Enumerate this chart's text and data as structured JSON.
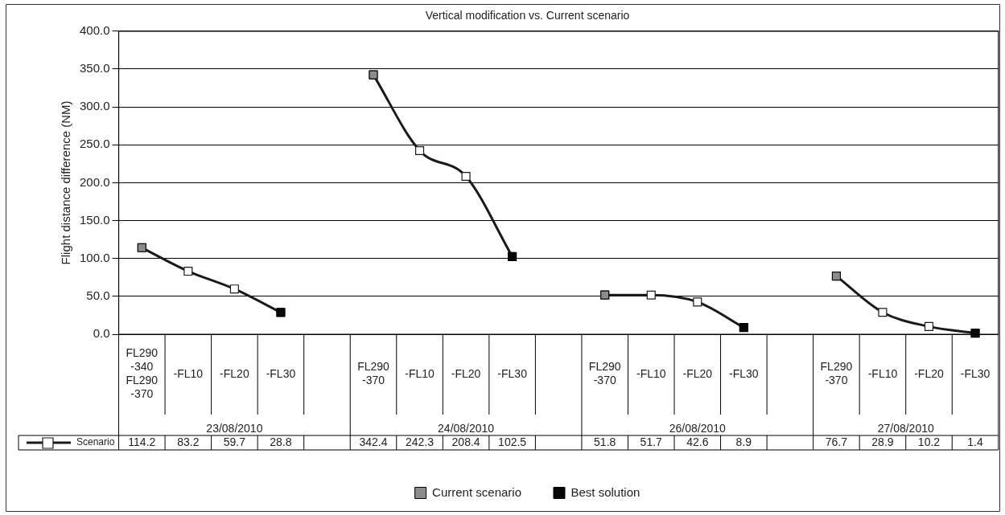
{
  "chart_data": {
    "type": "line",
    "title": "Vertical modification vs. Current scenario",
    "ylabel": "Flight distance difference (NM)",
    "categories": [
      "FL290-340 FL290-370",
      "-FL10",
      "-FL20",
      "-FL30",
      null,
      "FL290-370",
      "-FL10",
      "-FL20",
      "-FL30",
      null,
      "FL290-370",
      "-FL10",
      "-FL20",
      "-FL30",
      null,
      "FL290-370",
      "-FL10",
      "-FL20",
      "-FL30"
    ],
    "annotations": [
      "23/08/2010",
      "24/08/2010",
      "26/08/2010",
      "27/08/2010"
    ],
    "series": [
      {
        "name": "Scenario",
        "color": "#1a1a1a",
        "values": [
          114.2,
          83.2,
          59.7,
          28.8,
          null,
          342.4,
          242.3,
          208.4,
          102.5,
          null,
          51.8,
          51.7,
          42.6,
          8.9,
          null,
          76.7,
          28.9,
          10.2,
          1.4
        ],
        "value_labels": [
          "114.2",
          "83.2",
          "59.7",
          "28.8",
          null,
          "342.4",
          "242.3",
          "208.4",
          "102.5",
          null,
          "51.8",
          "51.7",
          "42.6",
          "8.9",
          null,
          "76.7",
          "28.9",
          "10.2",
          "1.4"
        ]
      },
      {
        "name": "Current scenario",
        "type": "scatter",
        "color": "#8c8c8c",
        "values": [
          114.2,
          null,
          null,
          null,
          null,
          342.4,
          null,
          null,
          null,
          null,
          51.8,
          null,
          null,
          null,
          null,
          76.7,
          null,
          null,
          null
        ]
      },
      {
        "name": "Best solution",
        "type": "scatter",
        "color": "#080808",
        "values": [
          null,
          null,
          null,
          28.8,
          null,
          null,
          null,
          null,
          102.5,
          null,
          null,
          null,
          null,
          8.9,
          null,
          null,
          null,
          null,
          1.4
        ]
      }
    ],
    "ylim": [
      0,
      400
    ],
    "yticks": [
      {
        "value": 0,
        "label": "0.0"
      },
      {
        "value": 50,
        "label": "50.0"
      },
      {
        "value": 100,
        "label": "100.0"
      },
      {
        "value": 150,
        "label": "150.0"
      },
      {
        "value": 200,
        "label": "200.0"
      },
      {
        "value": 250,
        "label": "250.0"
      },
      {
        "value": 300,
        "label": "300.0"
      },
      {
        "value": 350,
        "label": "350.0"
      },
      {
        "value": 400,
        "label": "400.0"
      }
    ],
    "grid": "y",
    "legend": "bottom",
    "marker": "square",
    "line_style": "solid"
  }
}
